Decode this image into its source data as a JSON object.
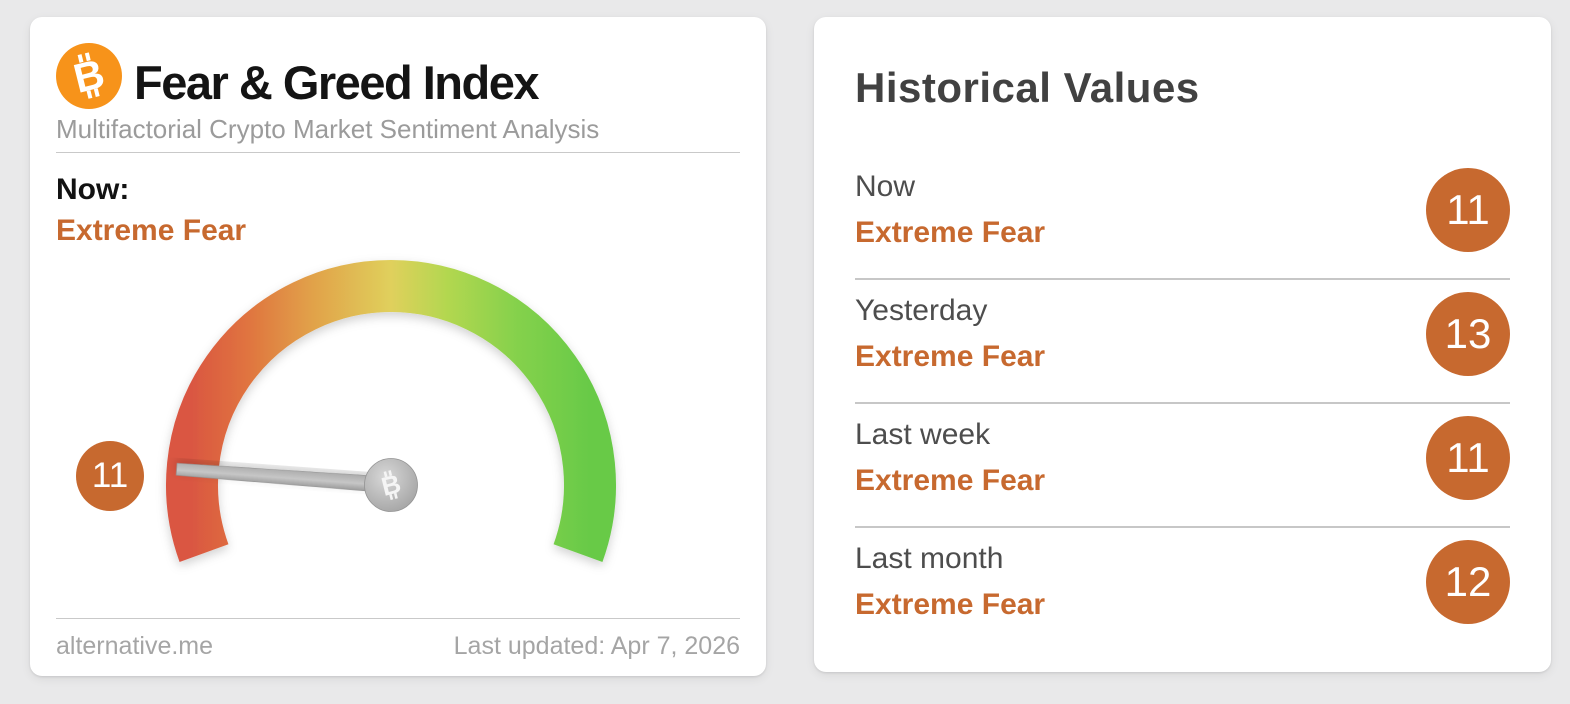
{
  "chart_data": {
    "type": "gauge",
    "title": "Fear & Greed Index",
    "value": 11,
    "min": 0,
    "max": 100,
    "classification": "Extreme Fear",
    "gauge_arc_degrees": 220,
    "scale_gradient": [
      "#da5742",
      "#e0743f",
      "#e1a149",
      "#e0d05c",
      "#b3d750",
      "#84d14c",
      "#68ca47"
    ],
    "needle_color": "#aaaaaa",
    "historical": [
      {
        "label": "Now",
        "classification": "Extreme Fear",
        "value": 11
      },
      {
        "label": "Yesterday",
        "classification": "Extreme Fear",
        "value": 13
      },
      {
        "label": "Last week",
        "classification": "Extreme Fear",
        "value": 11
      },
      {
        "label": "Last month",
        "classification": "Extreme Fear",
        "value": 12
      }
    ]
  },
  "fgi_card": {
    "title": "Fear & Greed Index",
    "subtitle": "Multifactorial Crypto Market Sentiment Analysis",
    "now_label": "Now:",
    "now_classification": "Extreme Fear",
    "footer_site": "alternative.me",
    "footer_updated": "Last updated: Apr 7, 2026"
  },
  "historical_card": {
    "title": "Historical Values"
  },
  "icons": {
    "bitcoin_glyph": "B",
    "logo_icon_name": "bitcoin-icon",
    "needle_hub_icon_name": "bitcoin-icon"
  },
  "colors": {
    "accent_orange": "#c7692f",
    "bitcoin_orange": "#f7931a",
    "page_background": "#e9e9ea",
    "card_background": "#ffffff",
    "title_text": "#141414",
    "subtitle_text": "#9b9b9b",
    "footer_text": "#a5a5a5",
    "row_label_text": "#4d4d4d"
  }
}
